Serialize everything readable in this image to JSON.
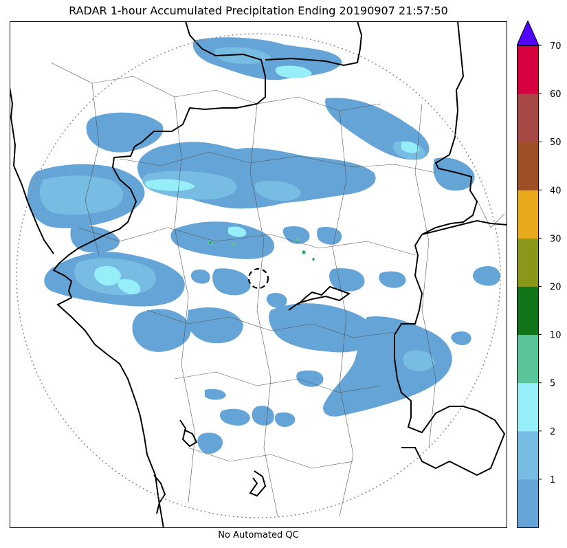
{
  "title": "RADAR 1-hour Accumulated Precipitation Ending 20190907 21:57:50",
  "footer": "No Automated QC",
  "colorbar": {
    "tick_labels": [
      "1",
      "2",
      "5",
      "10",
      "20",
      "30",
      "40",
      "50",
      "60",
      "70"
    ],
    "levels": [
      {
        "max": 1,
        "color": "#64a4d6"
      },
      {
        "max": 2,
        "color": "#77bde3"
      },
      {
        "max": 5,
        "color": "#96eef9"
      },
      {
        "max": 10,
        "color": "#5bc59a"
      },
      {
        "max": 20,
        "color": "#0f7518"
      },
      {
        "max": 30,
        "color": "#8b9718"
      },
      {
        "max": 40,
        "color": "#e9a91d"
      },
      {
        "max": 50,
        "color": "#9f4f25"
      },
      {
        "max": 60,
        "color": "#a84844"
      },
      {
        "max": 70,
        "color": "#d6003f"
      }
    ],
    "extend_color": "#5200ff"
  },
  "map": {
    "range_ring_style": "dotted",
    "radar_site_marker": "dashed-circle",
    "coastline_color": "#000000",
    "border_color": "#000000"
  }
}
